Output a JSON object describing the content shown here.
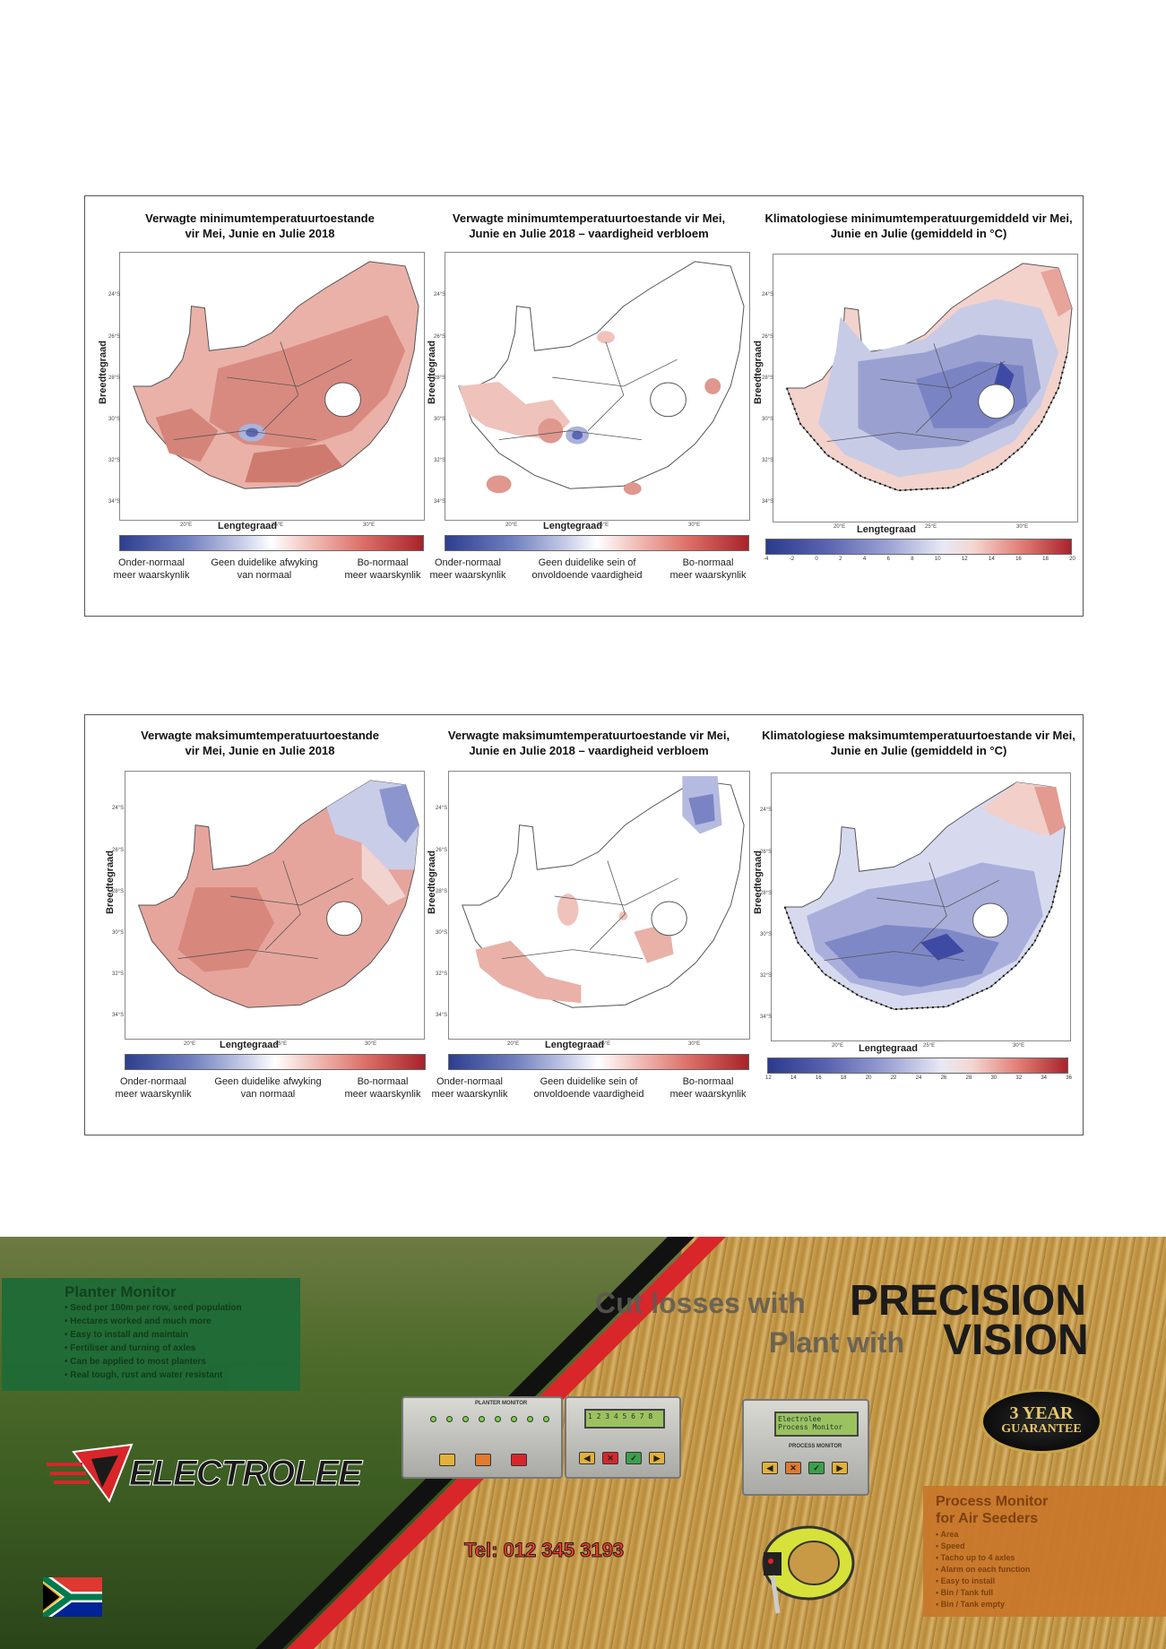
{
  "min_panel": {
    "forecast": {
      "title": "Verwagte minimumtemperatuurtoestande\nvir Mei, Junie en Julie 2018",
      "ylabel": "Breedtegraad",
      "xlabel": "Lengtegraad",
      "lat_ticks": [
        "24°S",
        "26°S",
        "28°S",
        "30°S",
        "32°S",
        "34°S"
      ],
      "lon_ticks": [
        "20°E",
        "25°E",
        "30°E"
      ],
      "cb_left": "Onder-normaal\nmeer waarskynlik",
      "cb_mid": "Geen duidelike afwyking\nvan normaal",
      "cb_right": "Bo-normaal\nmeer waarskynlik"
    },
    "skill": {
      "title": "Verwagte minimumtemperatuurtoestande vir Mei,\nJunie en Julie 2018 – vaardigheid verbloem",
      "ylabel": "Breedtegraad",
      "xlabel": "Lengtegraad",
      "lat_ticks": [
        "24°S",
        "26°S",
        "28°S",
        "30°S",
        "32°S",
        "34°S"
      ],
      "lon_ticks": [
        "20°E",
        "25°E",
        "30°E"
      ],
      "cb_left": "Onder-normaal\nmeer waarskynlik",
      "cb_mid": "Geen duidelike sein of\nonvoldoende vaardigheid",
      "cb_right": "Bo-normaal\nmeer waarskynlik"
    },
    "clim": {
      "title": "Klimatologiese minimumtemperatuurgemiddeld vir Mei,\nJunie en Julie (gemiddeld in °C)",
      "ylabel": "Breedtegraad",
      "xlabel": "Lengtegraad",
      "lat_ticks": [
        "24°S",
        "26°S",
        "28°S",
        "30°S",
        "32°S",
        "34°S"
      ],
      "lon_ticks": [
        "20°E",
        "25°E",
        "30°E"
      ],
      "cb_ticks": [
        "-4",
        "-2",
        "0",
        "2",
        "4",
        "6",
        "8",
        "10",
        "12",
        "14",
        "16",
        "18",
        "20"
      ]
    }
  },
  "max_panel": {
    "forecast": {
      "title": "Verwagte maksimumtemperatuurtoestande\nvir Mei, Junie en Julie 2018",
      "ylabel": "Breedtegraad",
      "xlabel": "Lengtegraad",
      "lat_ticks": [
        "24°S",
        "26°S",
        "28°S",
        "30°S",
        "32°S",
        "34°S"
      ],
      "lon_ticks": [
        "20°E",
        "25°E",
        "30°E"
      ],
      "cb_left": "Onder-normaal\nmeer waarskynlik",
      "cb_mid": "Geen duidelike afwyking\nvan normaal",
      "cb_right": "Bo-normaal\nmeer waarskynlik"
    },
    "skill": {
      "title": "Verwagte maksimumtemperatuurtoestande vir Mei,\nJunie en Julie 2018 – vaardigheid verbloem",
      "ylabel": "Breedtegraad",
      "xlabel": "Lengtegraad",
      "lat_ticks": [
        "24°S",
        "26°S",
        "28°S",
        "30°S",
        "32°S",
        "34°S"
      ],
      "lon_ticks": [
        "20°E",
        "25°E",
        "30°E"
      ],
      "cb_left": "Onder-normaal\nmeer waarskynlik",
      "cb_mid": "Geen duidelike sein of\nonvoldoende vaardigheid",
      "cb_right": "Bo-normaal\nmeer waarskynlik"
    },
    "clim": {
      "title": "Klimatologiese maksimumtemperatuurtoestande vir Mei,\nJunie en Julie (gemiddeld in °C)",
      "ylabel": "Breedtegraad",
      "xlabel": "Lengtegraad",
      "lat_ticks": [
        "24°S",
        "26°S",
        "28°S",
        "30°S",
        "32°S",
        "34°S"
      ],
      "lon_ticks": [
        "20°E",
        "25°E",
        "30°E"
      ],
      "cb_ticks": [
        "12",
        "14",
        "16",
        "18",
        "20",
        "22",
        "24",
        "26",
        "28",
        "30",
        "32",
        "34",
        "36"
      ]
    }
  },
  "advert": {
    "planter_box": {
      "title": "Planter Monitor",
      "items": [
        "Seed per 100m per row, seed population",
        "Hectares worked and much more",
        "Easy to install and maintain",
        "Fertiliser and turning of axles",
        "Can be applied to most planters",
        "Real tough, rust and water resistant"
      ]
    },
    "headline": {
      "line1_pre": "Cut losses with",
      "line1_em": "PRECISION",
      "line2_pre": "Plant with",
      "line2_em": "VISION"
    },
    "logo": "ELECTROLEE",
    "guarantee": {
      "line1": "3 YEAR",
      "line2": "GUARANTEE"
    },
    "phone": "Tel: 012 345 3193",
    "process_box": {
      "title": "Process Monitor\nfor Air Seeders",
      "items": [
        "Area",
        "Speed",
        "Tacho up to 4 axles",
        "Alarm on each function",
        "Easy to install",
        "Bin / Tank full",
        "Bin / Tank empty"
      ]
    },
    "devices": {
      "planter_label": "PLANTER MONITOR",
      "planter_lcd": "1 2 3 4 5 6 7 8",
      "process_label": "PROCESS MONITOR",
      "process_lcd": "Electrolee\nProcess Monitor"
    },
    "colors": {
      "red": "#d8262b",
      "black": "#111111",
      "green": "#1f6b37",
      "orange": "#c9782b"
    }
  }
}
